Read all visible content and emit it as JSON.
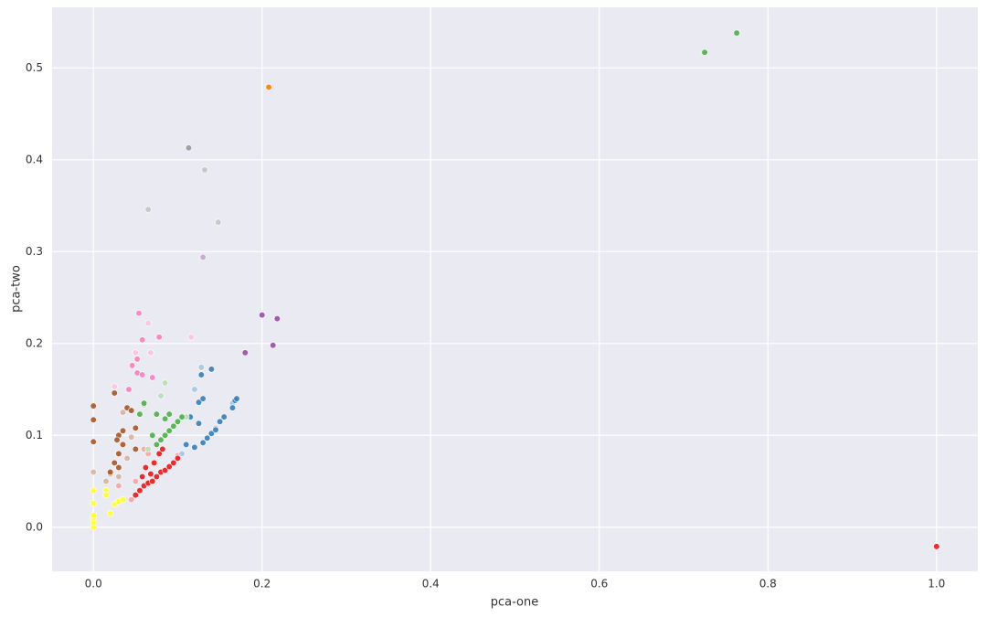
{
  "chart_data": {
    "type": "scatter",
    "xlabel": "pca-one",
    "ylabel": "pca-two",
    "xlim": [
      -0.049,
      1.049
    ],
    "ylim": [
      -0.048,
      0.566
    ],
    "xticks": [
      {
        "value": 0,
        "label": "0.0"
      },
      0.2,
      0.4,
      0.6,
      0.8,
      {
        "value": 1,
        "label": "1.0"
      }
    ],
    "yticks": [
      {
        "value": 0,
        "label": "0.0"
      },
      0.1,
      0.2,
      0.3,
      0.4,
      0.5
    ],
    "grid": true,
    "background": "#eaeaf2",
    "grid_color": "#ffffff",
    "series": [
      {
        "color": "#f4a5a6",
        "x": [
          0.05,
          0.06,
          0.065,
          0.03,
          0.045,
          0.1
        ],
        "values": [
          0.05,
          0.085,
          0.08,
          0.045,
          0.03,
          0.078
        ]
      },
      {
        "color": "#e41a1c",
        "x": [
          1.0,
          0.05,
          0.055,
          0.06,
          0.065,
          0.07,
          0.075,
          0.08,
          0.085,
          0.09,
          0.095,
          0.1,
          0.058,
          0.062,
          0.068,
          0.072,
          0.078,
          0.082
        ],
        "values": [
          -0.021,
          0.035,
          0.04,
          0.045,
          0.048,
          0.05,
          0.055,
          0.06,
          0.062,
          0.066,
          0.07,
          0.075,
          0.055,
          0.065,
          0.058,
          0.07,
          0.08,
          0.085
        ]
      },
      {
        "color": "#a8c4e0",
        "x": [
          0.105,
          0.12,
          0.145,
          0.128,
          0.165
        ],
        "values": [
          0.08,
          0.15,
          0.108,
          0.174,
          0.135
        ]
      },
      {
        "color": "#377eb8",
        "x": [
          0.11,
          0.12,
          0.13,
          0.135,
          0.14,
          0.145,
          0.15,
          0.155,
          0.165,
          0.168,
          0.17,
          0.125,
          0.125,
          0.13,
          0.115,
          0.128,
          0.14
        ],
        "values": [
          0.09,
          0.087,
          0.092,
          0.097,
          0.102,
          0.106,
          0.115,
          0.12,
          0.13,
          0.138,
          0.14,
          0.113,
          0.136,
          0.14,
          0.12,
          0.166,
          0.172
        ]
      },
      {
        "color": "#b8deb6",
        "x": [
          0.08,
          0.085,
          0.11,
          0.065,
          0.06
        ],
        "values": [
          0.143,
          0.157,
          0.12,
          0.085,
          0.133
        ]
      },
      {
        "color": "#4daf4a",
        "x": [
          0.075,
          0.08,
          0.085,
          0.09,
          0.095,
          0.1,
          0.105,
          0.085,
          0.09,
          0.075,
          0.055,
          0.06,
          0.07,
          0.725,
          0.763
        ],
        "values": [
          0.09,
          0.095,
          0.1,
          0.105,
          0.11,
          0.115,
          0.12,
          0.118,
          0.123,
          0.123,
          0.123,
          0.135,
          0.1,
          0.517,
          0.538
        ]
      },
      {
        "color": "#c9a3ce",
        "x": [
          0.13
        ],
        "values": [
          0.294
        ]
      },
      {
        "color": "#984ea3",
        "x": [
          0.2,
          0.218,
          0.18,
          0.213
        ],
        "values": [
          0.231,
          0.227,
          0.19,
          0.198
        ]
      },
      {
        "color": "#ff7f00",
        "x": [
          0.208
        ],
        "values": [
          0.479
        ]
      },
      {
        "color": "#c4c4c4",
        "x": [
          0.132,
          0.148,
          0.065
        ],
        "values": [
          0.389,
          0.332,
          0.346
        ]
      },
      {
        "color": "#999999",
        "x": [
          0.113
        ],
        "values": [
          0.413
        ]
      },
      {
        "color": "#fbc3e0",
        "x": [
          0.068,
          0.05,
          0.065,
          0.116,
          0.025
        ],
        "values": [
          0.19,
          0.19,
          0.222,
          0.207,
          0.153
        ]
      },
      {
        "color": "#f781bf",
        "x": [
          0.054,
          0.058,
          0.078,
          0.052,
          0.046,
          0.052,
          0.058,
          0.07,
          0.042
        ],
        "values": [
          0.233,
          0.204,
          0.207,
          0.183,
          0.176,
          0.168,
          0.166,
          0.163,
          0.15
        ]
      },
      {
        "color": "#d6b4a0",
        "x": [
          0,
          0.035,
          0.015,
          0.02,
          0.03,
          0.04,
          0.045
        ],
        "values": [
          0.06,
          0.125,
          0.05,
          0.058,
          0.055,
          0.075,
          0.098
        ]
      },
      {
        "color": "#a65628",
        "x": [
          0,
          0,
          0,
          0.03,
          0.035,
          0.04,
          0.045,
          0.05,
          0.025,
          0.02,
          0.025,
          0.03,
          0.035,
          0.028,
          0.05,
          0.03
        ],
        "values": [
          0.132,
          0.117,
          0.093,
          0.1,
          0.105,
          0.13,
          0.127,
          0.108,
          0.146,
          0.06,
          0.07,
          0.08,
          0.09,
          0.095,
          0.085,
          0.065
        ]
      },
      {
        "color": "#ffff33",
        "x": [
          0,
          0,
          0,
          0,
          0,
          0,
          0.015,
          0.025,
          0.03,
          0.035,
          0.02,
          0.015
        ],
        "values": [
          0,
          0.005,
          0.01,
          0.013,
          0.026,
          0.04,
          0.04,
          0.025,
          0.028,
          0.03,
          0.015,
          0.035
        ]
      }
    ]
  }
}
